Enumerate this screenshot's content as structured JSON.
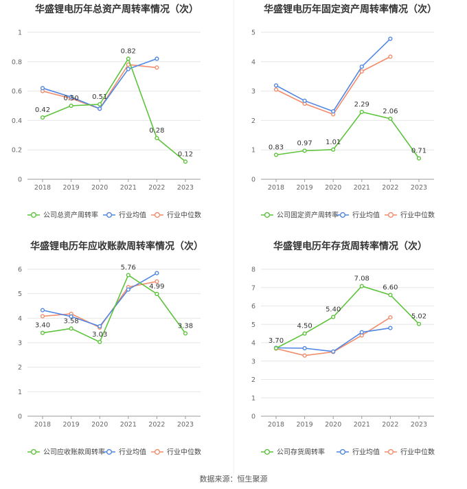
{
  "source_label": "数据来源：恒生聚源",
  "colors": {
    "company": "#5cc33b",
    "avg": "#4f86e3",
    "median": "#f28b6b"
  },
  "chart_data": [
    {
      "type": "line",
      "title": "华盛锂电历年总资产周转率情况（次）",
      "x": [
        "2018",
        "2019",
        "2020",
        "2021",
        "2022",
        "2023"
      ],
      "ylim": [
        0,
        1
      ],
      "yticks": [
        "0",
        "0.2",
        "0.4",
        "0.6",
        "0.8",
        "1"
      ],
      "series": [
        {
          "name": "公司总资产周转率",
          "values": [
            0.42,
            0.5,
            0.51,
            0.82,
            0.28,
            0.12
          ],
          "labels": [
            "0.42",
            "0.50",
            "0.51",
            "0.82",
            "0.28",
            "0.12"
          ]
        },
        {
          "name": "行业均值",
          "values": [
            0.62,
            0.56,
            0.48,
            0.75,
            0.82,
            null
          ]
        },
        {
          "name": "行业中位数",
          "values": [
            0.6,
            0.55,
            0.48,
            0.78,
            0.76,
            null
          ]
        }
      ]
    },
    {
      "type": "line",
      "title": "华盛锂电历年固定资产周转率情况（次）",
      "x": [
        "2018",
        "2019",
        "2020",
        "2021",
        "2022",
        "2023"
      ],
      "ylim": [
        0,
        5
      ],
      "yticks": [
        "0",
        "1",
        "2",
        "3",
        "4",
        "5"
      ],
      "series": [
        {
          "name": "公司固定资产周转率",
          "values": [
            0.83,
            0.97,
            1.01,
            2.29,
            2.06,
            0.71
          ],
          "labels": [
            "0.83",
            "0.97",
            "1.01",
            "2.29",
            "2.06",
            "0.71"
          ]
        },
        {
          "name": "行业均值",
          "values": [
            3.19,
            2.67,
            2.31,
            3.83,
            4.78,
            null
          ]
        },
        {
          "name": "行业中位数",
          "values": [
            3.05,
            2.57,
            2.21,
            3.67,
            4.17,
            null
          ]
        }
      ]
    },
    {
      "type": "line",
      "title": "华盛锂电历年应收账款周转率情况（次）",
      "x": [
        "2018",
        "2019",
        "2020",
        "2021",
        "2022",
        "2023"
      ],
      "ylim": [
        0,
        6
      ],
      "yticks": [
        "0",
        "1",
        "2",
        "3",
        "4",
        "5",
        "6"
      ],
      "series": [
        {
          "name": "公司应收账款周转率",
          "values": [
            3.4,
            3.58,
            3.03,
            5.76,
            4.99,
            3.38
          ],
          "labels": [
            "3.40",
            "3.58",
            "3.03",
            "5.76",
            "4.99",
            "3.38"
          ]
        },
        {
          "name": "行业均值",
          "values": [
            4.33,
            4.07,
            3.67,
            5.17,
            5.84,
            null
          ]
        },
        {
          "name": "行业中位数",
          "values": [
            4.08,
            4.18,
            3.62,
            5.27,
            5.5,
            null
          ]
        }
      ]
    },
    {
      "type": "line",
      "title": "华盛锂电历年存货周转率情况（次）",
      "x": [
        "2018",
        "2019",
        "2020",
        "2021",
        "2022",
        "2023"
      ],
      "ylim": [
        0,
        8
      ],
      "yticks": [
        "0",
        "1",
        "2",
        "3",
        "4",
        "5",
        "6",
        "7",
        "8"
      ],
      "series": [
        {
          "name": "公司存货周转率",
          "values": [
            3.7,
            4.5,
            5.4,
            7.08,
            6.6,
            5.02
          ],
          "labels": [
            "3.70",
            "4.50",
            "5.40",
            "7.08",
            "6.60",
            "5.02"
          ]
        },
        {
          "name": "行业均值",
          "values": [
            3.72,
            3.7,
            3.52,
            4.57,
            4.8,
            null
          ]
        },
        {
          "name": "行业中位数",
          "values": [
            3.68,
            3.3,
            3.5,
            4.4,
            5.38,
            null
          ]
        }
      ]
    }
  ]
}
